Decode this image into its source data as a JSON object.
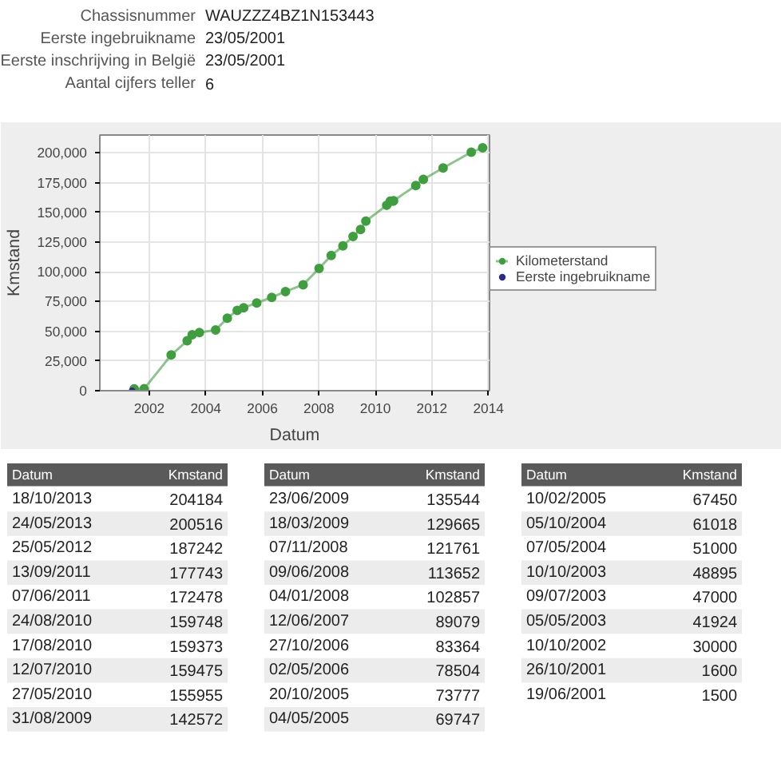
{
  "chart_data": [
    {
      "type": "other",
      "annotations": [
        "Chassisnummer",
        "WAUZZZ4BZ1N153443",
        "Eerste ingebruikname",
        "23/05/2001",
        "Eerste inschrijving in België",
        "23/05/2001",
        "Aantal cijfers teller",
        "6"
      ]
    },
    {
      "type": "line",
      "xlabel": "Datum",
      "ylabel": "Kmstand",
      "x": [
        "2013-10-18",
        "2013-05-24",
        "2012-05-25",
        "2011-09-13",
        "2011-06-07",
        "2010-08-24",
        "2010-08-17",
        "2010-07-12",
        "2010-05-27",
        "2009-08-31",
        "2009-06-23",
        "2009-03-18",
        "2008-11-07",
        "2008-06-09",
        "2008-01-04",
        "2007-06-12",
        "2006-10-27",
        "2006-05-02",
        "2005-10-20",
        "2005-05-04",
        "2005-02-10",
        "2004-10-05",
        "2004-05-07",
        "2003-10-10",
        "2003-07-09",
        "2003-05-05",
        "2002-10-10",
        "2001-10-26",
        "2001-06-19"
      ],
      "series": [
        {
          "name": "Kilometerstand",
          "color": "#3f9f3f",
          "values": [
            204184,
            200516,
            187242,
            177743,
            172478,
            159748,
            159373,
            159475,
            155955,
            142572,
            135544,
            129665,
            121761,
            113652,
            102857,
            89079,
            83364,
            78504,
            73777,
            69747,
            67450,
            61018,
            51000,
            48895,
            47000,
            41924,
            30000,
            1600,
            1500
          ]
        },
        {
          "name": "Eerste ingebruikname",
          "type": "scatter",
          "color": "#2b2b8f",
          "x": [
            "2001-05-23"
          ],
          "values": [
            0
          ]
        }
      ],
      "marker": "circle",
      "grid": true,
      "legend": "right",
      "xlim": [
        "2000-04-01",
        "2014-01-15"
      ],
      "xticks": [
        {
          "value": "2002-01-01",
          "label": "2002"
        },
        {
          "value": "2004-01-01",
          "label": "2004"
        },
        {
          "value": "2006-01-01",
          "label": "2006"
        },
        {
          "value": "2008-01-01",
          "label": "2008"
        },
        {
          "value": "2010-01-01",
          "label": "2010"
        },
        {
          "value": "2012-01-01",
          "label": "2012"
        },
        {
          "value": "2014-01-01",
          "label": "2014"
        }
      ],
      "ylim": [
        0,
        215000
      ],
      "yticks": [
        {
          "value": 0,
          "label": "0"
        },
        {
          "value": 25000,
          "label": "25,000"
        },
        {
          "value": 50000,
          "label": "50,000"
        },
        {
          "value": 75000,
          "label": "75,000"
        },
        {
          "value": 100000,
          "label": "100,000"
        },
        {
          "value": 125000,
          "label": "125,000"
        },
        {
          "value": 150000,
          "label": "150,000"
        },
        {
          "value": 175000,
          "label": "175,000"
        },
        {
          "value": 200000,
          "label": "200,000"
        }
      ]
    },
    {
      "type": "other",
      "annotations": [
        "Datum",
        "Kmstand",
        "18/10/2013",
        "204184",
        "24/05/2013",
        "200516",
        "25/05/2012",
        "187242",
        "13/09/2011",
        "177743",
        "07/06/2011",
        "172478",
        "24/08/2010",
        "159748",
        "17/08/2010",
        "159373",
        "12/07/2010",
        "159475",
        "27/05/2010",
        "155955",
        "31/08/2009",
        "142572",
        "Datum",
        "Kmstand",
        "23/06/2009",
        "135544",
        "18/03/2009",
        "129665",
        "07/11/2008",
        "121761",
        "09/06/2008",
        "113652",
        "04/01/2008",
        "102857",
        "12/06/2007",
        "89079",
        "27/10/2006",
        "83364",
        "02/05/2006",
        "78504",
        "20/10/2005",
        "73777",
        "04/05/2005",
        "69747",
        "Datum",
        "Kmstand",
        "10/02/2005",
        "67450",
        "05/10/2004",
        "61018",
        "07/05/2004",
        "51000",
        "10/10/2003",
        "48895",
        "09/07/2003",
        "47000",
        "05/05/2003",
        "41924",
        "10/10/2002",
        "30000",
        "26/10/2001",
        "1600",
        "19/06/2001",
        "1500"
      ]
    }
  ]
}
